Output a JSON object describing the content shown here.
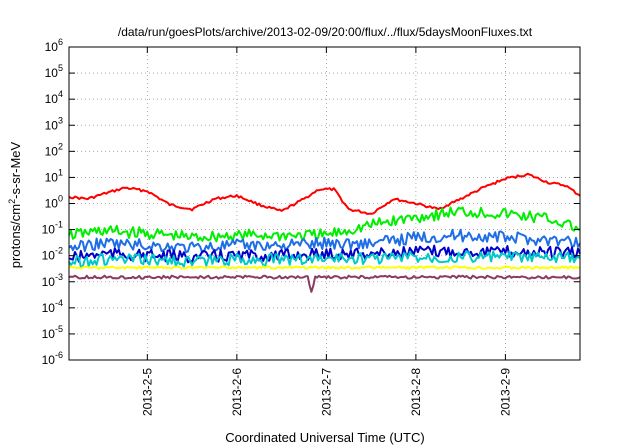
{
  "chart_data": {
    "type": "line",
    "title": "/data/run/goesPlots/archive/2013-02-09/20:00/flux/../flux/5daysMoonFluxes.txt",
    "xlabel": "Coordinated Universal Time (UTC)",
    "ylabel_parts": [
      "protons/cm",
      "2",
      "-s-sr-MeV"
    ],
    "y_scale": "log",
    "ylim": [
      1e-06,
      1000000.0
    ],
    "y_ticks": [
      {
        "base": "10",
        "exp": "-6",
        "value": 1e-06
      },
      {
        "base": "10",
        "exp": "-5",
        "value": 1e-05
      },
      {
        "base": "10",
        "exp": "-4",
        "value": 0.0001
      },
      {
        "base": "10",
        "exp": "-3",
        "value": 0.001
      },
      {
        "base": "10",
        "exp": "-2",
        "value": 0.01
      },
      {
        "base": "10",
        "exp": "-1",
        "value": 0.1
      },
      {
        "base": "10",
        "exp": "0",
        "value": 1
      },
      {
        "base": "10",
        "exp": "1",
        "value": 10
      },
      {
        "base": "10",
        "exp": "2",
        "value": 100
      },
      {
        "base": "10",
        "exp": "3",
        "value": 1000
      },
      {
        "base": "10",
        "exp": "4",
        "value": 10000
      },
      {
        "base": "10",
        "exp": "5",
        "value": 100000
      },
      {
        "base": "10",
        "exp": "6",
        "value": 1000000
      }
    ],
    "xlim": [
      "2013-02-04 03:00",
      "2013-02-09 20:00"
    ],
    "x_ticks": [
      "2013-2-5",
      "2013-2-6",
      "2013-2-7",
      "2013-2-8",
      "2013-2-9"
    ],
    "x_tick_values": [
      "2013-02-05 00:00",
      "2013-02-06 00:00",
      "2013-02-07 00:00",
      "2013-02-08 00:00",
      "2013-02-09 00:00"
    ],
    "grid": true,
    "series": [
      {
        "color": "#ff0000",
        "x": [
          "2013-02-04 03:00",
          "2013-02-04 08:00",
          "2013-02-04 13:00",
          "2013-02-04 18:00",
          "2013-02-05 00:00",
          "2013-02-05 06:00",
          "2013-02-05 12:00",
          "2013-02-05 18:00",
          "2013-02-06 00:00",
          "2013-02-06 06:00",
          "2013-02-06 12:00",
          "2013-02-06 18:00",
          "2013-02-06 22:00",
          "2013-02-07 02:00",
          "2013-02-07 06:00",
          "2013-02-07 12:00",
          "2013-02-07 18:00",
          "2013-02-08 00:00",
          "2013-02-08 06:00",
          "2013-02-08 12:00",
          "2013-02-08 18:00",
          "2013-02-09 00:00",
          "2013-02-09 06:00",
          "2013-02-09 12:00",
          "2013-02-09 16:00",
          "2013-02-09 20:00"
        ],
        "values": [
          1.8,
          1.5,
          2.5,
          4.0,
          3.0,
          0.9,
          0.6,
          1.5,
          2.0,
          0.9,
          0.5,
          1.5,
          3.5,
          3.5,
          0.6,
          0.4,
          1.5,
          1.0,
          0.6,
          1.5,
          4.0,
          9.0,
          13.0,
          6.0,
          5.0,
          2.0
        ]
      },
      {
        "color": "#00ee00",
        "x": [
          "2013-02-04 03:00",
          "2013-02-04 12:00",
          "2013-02-05 00:00",
          "2013-02-05 12:00",
          "2013-02-06 00:00",
          "2013-02-06 12:00",
          "2013-02-07 00:00",
          "2013-02-07 12:00",
          "2013-02-08 00:00",
          "2013-02-08 12:00",
          "2013-02-09 00:00",
          "2013-02-09 12:00",
          "2013-02-09 20:00"
        ],
        "values": [
          0.06,
          0.09,
          0.07,
          0.05,
          0.06,
          0.06,
          0.06,
          0.15,
          0.3,
          0.5,
          0.4,
          0.25,
          0.1
        ]
      },
      {
        "color": "#1e6ee6",
        "x": [
          "2013-02-04 03:00",
          "2013-02-04 12:00",
          "2013-02-05 00:00",
          "2013-02-05 12:00",
          "2013-02-06 00:00",
          "2013-02-06 12:00",
          "2013-02-07 00:00",
          "2013-02-07 12:00",
          "2013-02-08 00:00",
          "2013-02-08 12:00",
          "2013-02-09 00:00",
          "2013-02-09 12:00",
          "2013-02-09 20:00"
        ],
        "values": [
          0.02,
          0.03,
          0.025,
          0.02,
          0.025,
          0.025,
          0.03,
          0.03,
          0.05,
          0.06,
          0.05,
          0.04,
          0.03
        ]
      },
      {
        "color": "#0000c8",
        "x": [
          "2013-02-04 03:00",
          "2013-02-04 12:00",
          "2013-02-05 00:00",
          "2013-02-05 12:00",
          "2013-02-06 00:00",
          "2013-02-06 12:00",
          "2013-02-07 00:00",
          "2013-02-07 12:00",
          "2013-02-08 00:00",
          "2013-02-08 12:00",
          "2013-02-09 00:00",
          "2013-02-09 12:00",
          "2013-02-09 20:00"
        ],
        "values": [
          0.008,
          0.012,
          0.01,
          0.009,
          0.01,
          0.01,
          0.012,
          0.012,
          0.014,
          0.015,
          0.014,
          0.013,
          0.012
        ]
      },
      {
        "color": "#00c8c8",
        "x": [
          "2013-02-04 03:00",
          "2013-02-04 12:00",
          "2013-02-05 00:00",
          "2013-02-05 12:00",
          "2013-02-06 00:00",
          "2013-02-06 12:00",
          "2013-02-07 00:00",
          "2013-02-07 12:00",
          "2013-02-08 00:00",
          "2013-02-08 12:00",
          "2013-02-09 00:00",
          "2013-02-09 12:00",
          "2013-02-09 20:00"
        ],
        "values": [
          0.006,
          0.007,
          0.007,
          0.006,
          0.007,
          0.007,
          0.008,
          0.008,
          0.009,
          0.009,
          0.009,
          0.008,
          0.008
        ]
      },
      {
        "color": "#ffff00",
        "x": [
          "2013-02-04 03:00",
          "2013-02-04 12:00",
          "2013-02-05 00:00",
          "2013-02-05 12:00",
          "2013-02-06 00:00",
          "2013-02-06 12:00",
          "2013-02-07 00:00",
          "2013-02-07 12:00",
          "2013-02-08 00:00",
          "2013-02-08 12:00",
          "2013-02-09 00:00",
          "2013-02-09 12:00",
          "2013-02-09 20:00"
        ],
        "values": [
          0.0035,
          0.0035,
          0.0035,
          0.0035,
          0.0035,
          0.0035,
          0.0035,
          0.0035,
          0.0035,
          0.0035,
          0.0035,
          0.0035,
          0.0035
        ]
      },
      {
        "color": "#8b3a62",
        "x": [
          "2013-02-04 03:00",
          "2013-02-04 12:00",
          "2013-02-05 00:00",
          "2013-02-05 12:00",
          "2013-02-06 00:00",
          "2013-02-06 12:00",
          "2013-02-06 19:00",
          "2013-02-06 20:00",
          "2013-02-06 21:00",
          "2013-02-07 00:00",
          "2013-02-07 12:00",
          "2013-02-08 00:00",
          "2013-02-08 12:00",
          "2013-02-09 00:00",
          "2013-02-09 12:00",
          "2013-02-09 20:00"
        ],
        "values": [
          0.0015,
          0.0015,
          0.0015,
          0.0015,
          0.0015,
          0.0015,
          0.0015,
          0.0004,
          0.0015,
          0.0015,
          0.0015,
          0.0015,
          0.0015,
          0.0015,
          0.0015,
          0.0015
        ]
      }
    ]
  }
}
